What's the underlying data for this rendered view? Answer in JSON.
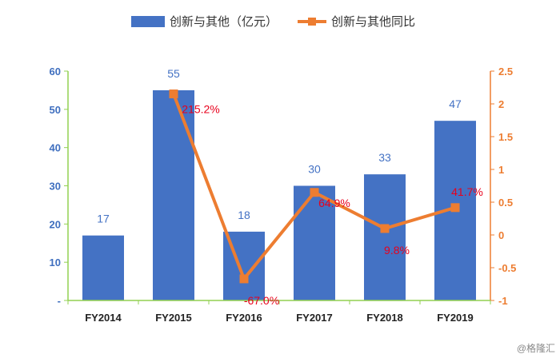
{
  "watermark": "@格隆汇",
  "chart_data": {
    "type": "bar+line",
    "categories": [
      "FY2014",
      "FY2015",
      "FY2016",
      "FY2017",
      "FY2018",
      "FY2019"
    ],
    "series": [
      {
        "name": "创新与其他（亿元）",
        "type": "bar",
        "axis": "left",
        "values": [
          17,
          55,
          18,
          30,
          33,
          47
        ],
        "labels": [
          "17",
          "55",
          "18",
          "30",
          "33",
          "47"
        ],
        "color": "#4472c4"
      },
      {
        "name": "创新与其他同比",
        "type": "line",
        "axis": "right",
        "values": [
          null,
          2.152,
          -0.67,
          0.649,
          0.098,
          0.417
        ],
        "labels": [
          "",
          "215.2%",
          "-67.0%",
          "64.9%",
          "9.8%",
          "41.7%"
        ],
        "color": "#ed7d31",
        "label_color": "#e8001c"
      }
    ],
    "y_left": {
      "min": 0,
      "max": 60,
      "ticks": [
        0,
        10,
        20,
        30,
        40,
        50,
        60
      ],
      "tick_labels": [
        "-",
        "10",
        "20",
        "30",
        "40",
        "50",
        "60"
      ],
      "color": "#3f6fbf"
    },
    "y_right": {
      "min": -1,
      "max": 2.5,
      "ticks": [
        -1,
        -0.5,
        0,
        0.5,
        1,
        1.5,
        2,
        2.5
      ],
      "tick_labels": [
        "-1",
        "-0.5",
        "0",
        "0.5",
        "1",
        "1.5",
        "2",
        "2.5"
      ],
      "color": "#ed7d31"
    },
    "legend": "top",
    "grid": false,
    "axis_color": "#92d050"
  }
}
